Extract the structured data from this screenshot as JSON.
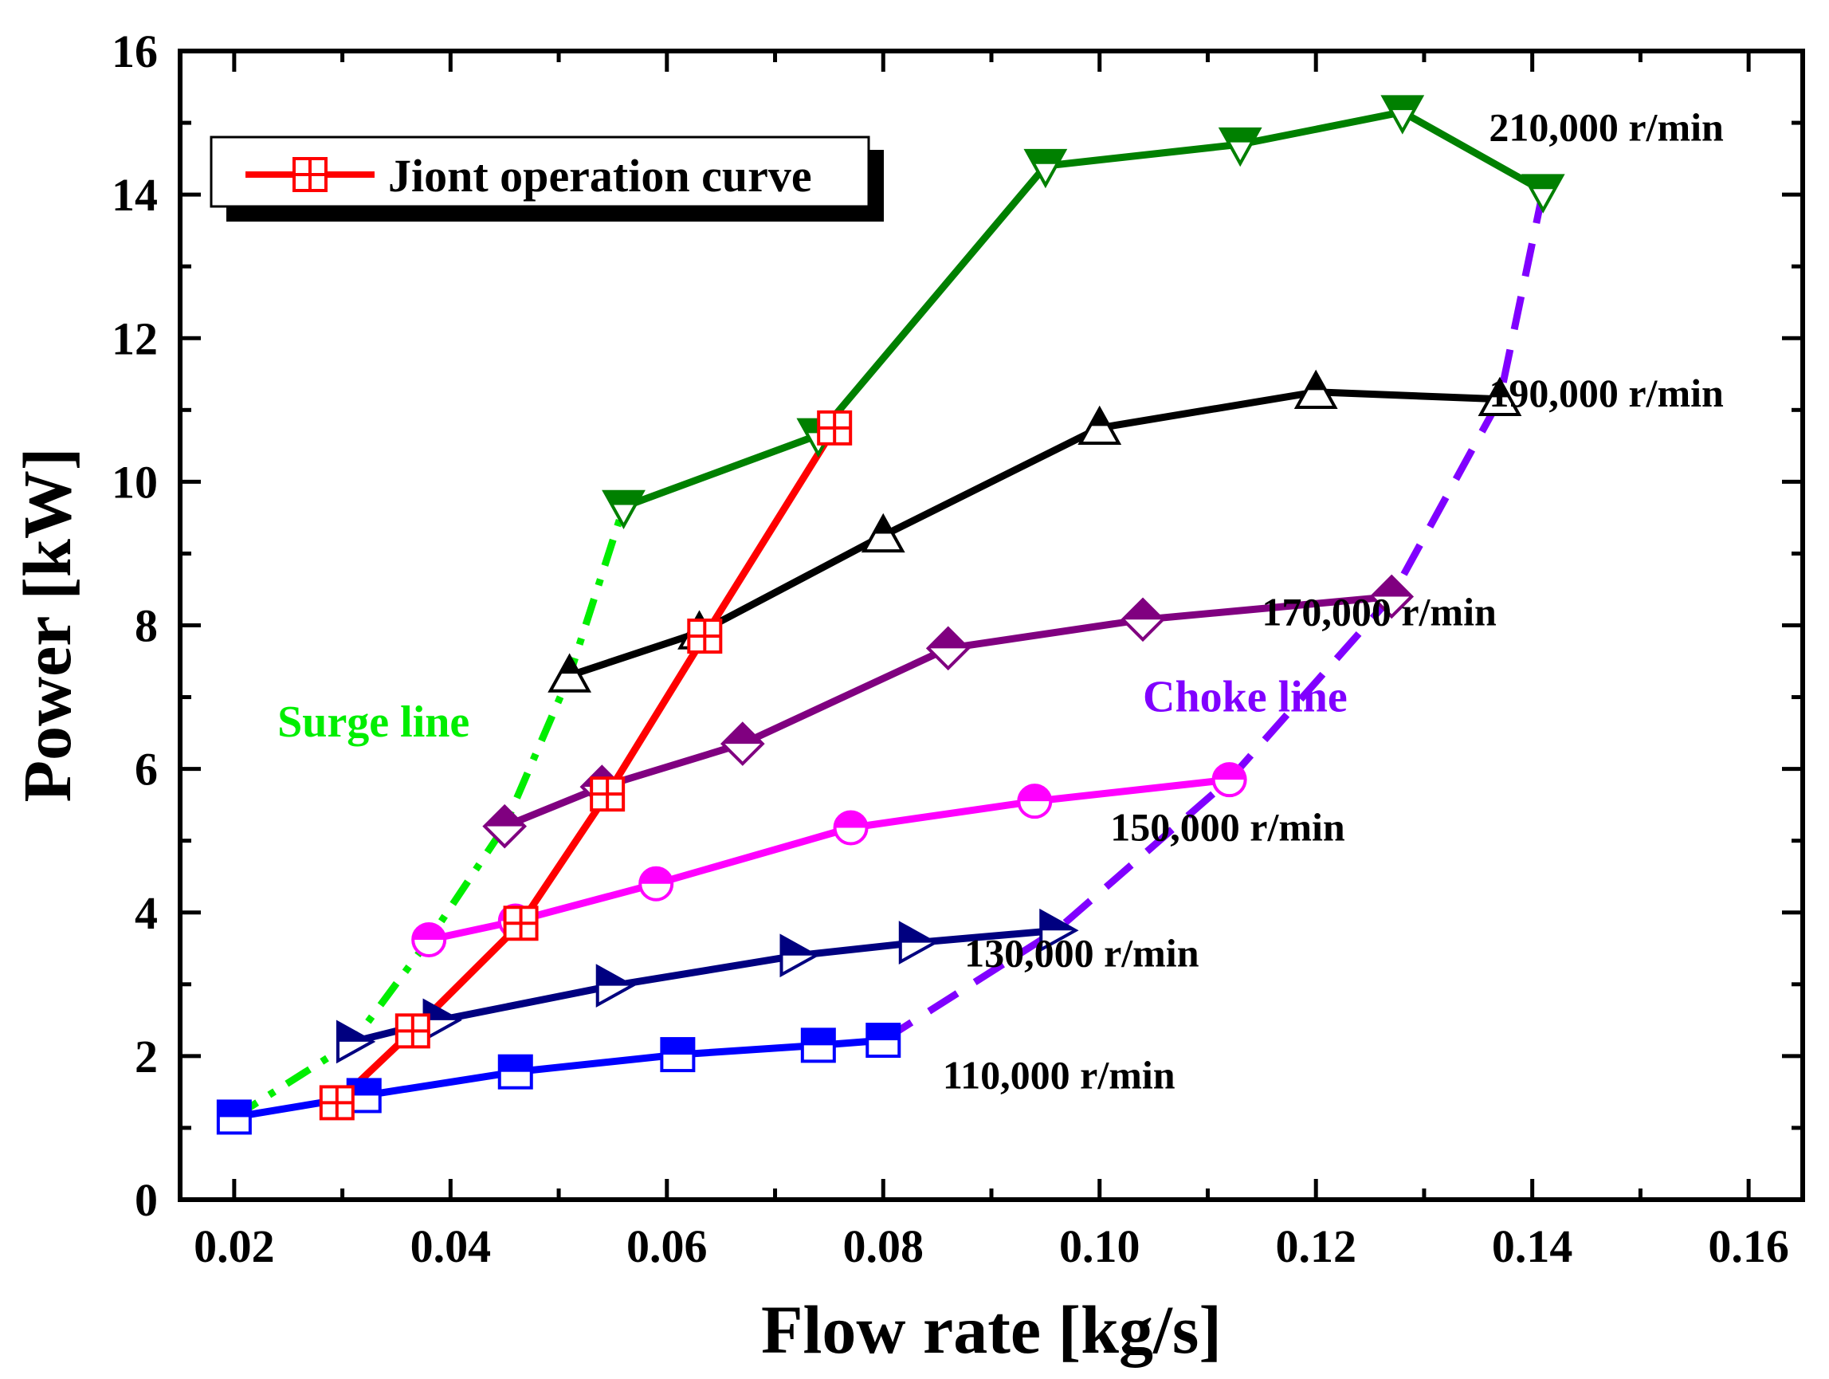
{
  "chart_data": {
    "type": "line",
    "title": "",
    "xlabel": "Flow rate [kg/s]",
    "ylabel": "Power [kW]",
    "xlim": [
      0.015,
      0.165
    ],
    "ylim": [
      0,
      16
    ],
    "xticks": [
      0.02,
      0.04,
      0.06,
      0.08,
      0.1,
      0.12,
      0.14,
      0.16
    ],
    "xtick_labels": [
      "0.02",
      "0.04",
      "0.06",
      "0.08",
      "0.10",
      "0.12",
      "0.14",
      "0.16"
    ],
    "yticks": [
      0,
      2,
      4,
      6,
      8,
      10,
      12,
      14,
      16
    ],
    "ytick_labels": [
      "0",
      "2",
      "4",
      "6",
      "8",
      "10",
      "12",
      "14",
      "16"
    ],
    "legend_position": "top-left",
    "series": [
      {
        "name": "110,000 r/min",
        "color": "#0000ff",
        "marker": "square",
        "dash": "solid",
        "x": [
          0.02,
          0.032,
          0.046,
          0.061,
          0.074,
          0.08
        ],
        "y": [
          1.15,
          1.45,
          1.78,
          2.02,
          2.15,
          2.22
        ]
      },
      {
        "name": "130,000 r/min",
        "color": "#000080",
        "marker": "triangle-right",
        "dash": "solid",
        "x": [
          0.031,
          0.039,
          0.055,
          0.072,
          0.083,
          0.096
        ],
        "y": [
          2.2,
          2.5,
          2.98,
          3.4,
          3.58,
          3.75
        ]
      },
      {
        "name": "150,000 r/min",
        "color": "#ff00ff",
        "marker": "circle",
        "dash": "solid",
        "x": [
          0.038,
          0.046,
          0.059,
          0.077,
          0.094,
          0.112
        ],
        "y": [
          3.62,
          3.88,
          4.4,
          5.18,
          5.55,
          5.85
        ]
      },
      {
        "name": "170,000 r/min",
        "color": "#800080",
        "marker": "diamond",
        "dash": "solid",
        "x": [
          0.045,
          0.054,
          0.067,
          0.086,
          0.104,
          0.127
        ],
        "y": [
          5.2,
          5.75,
          6.35,
          7.68,
          8.08,
          8.4
        ]
      },
      {
        "name": "190,000 r/min",
        "color": "#000000",
        "marker": "triangle-up",
        "dash": "solid",
        "x": [
          0.051,
          0.063,
          0.08,
          0.1,
          0.12,
          0.137
        ],
        "y": [
          7.3,
          7.9,
          9.25,
          10.75,
          11.25,
          11.15
        ]
      },
      {
        "name": "210,000 r/min",
        "color": "#008000",
        "marker": "triangle-down",
        "dash": "solid",
        "x": [
          0.056,
          0.074,
          0.095,
          0.113,
          0.128,
          0.141
        ],
        "y": [
          9.65,
          10.65,
          14.4,
          14.7,
          15.15,
          14.05
        ]
      },
      {
        "name": "Surge line",
        "color": "#00ee00",
        "marker": "none",
        "dash": "dashdot",
        "x": [
          0.02,
          0.031,
          0.038,
          0.045,
          0.051,
          0.056
        ],
        "y": [
          1.15,
          2.2,
          3.62,
          5.2,
          7.3,
          9.65
        ]
      },
      {
        "name": "Choke line",
        "color": "#8000ff",
        "marker": "none",
        "dash": "dashed",
        "x": [
          0.08,
          0.096,
          0.112,
          0.127,
          0.137,
          0.141
        ],
        "y": [
          2.22,
          3.75,
          5.85,
          8.4,
          11.15,
          14.05
        ]
      },
      {
        "name": "Jiont operation curve",
        "color": "#ff0000",
        "marker": "square-plus",
        "dash": "solid",
        "x": [
          0.0295,
          0.0365,
          0.0465,
          0.0545,
          0.0635,
          0.0755
        ],
        "y": [
          1.35,
          2.35,
          3.85,
          5.65,
          7.85,
          10.75
        ]
      }
    ],
    "annotations": [
      {
        "text": "110,000 r/min",
        "x": 0.0855,
        "y": 1.55
      },
      {
        "text": "130,000 r/min",
        "x": 0.0875,
        "y": 3.25
      },
      {
        "text": "150,000 r/min",
        "x": 0.101,
        "y": 5.0
      },
      {
        "text": "170,000 r/min",
        "x": 0.115,
        "y": 8.0
      },
      {
        "text": "190,000 r/min",
        "x": 0.136,
        "y": 11.05
      },
      {
        "text": "210,000 r/min",
        "x": 0.136,
        "y": 14.75
      },
      {
        "text": "Surge line",
        "x": 0.024,
        "y": 6.45,
        "color": "#00ee00"
      },
      {
        "text": "Choke line",
        "x": 0.104,
        "y": 6.8,
        "color": "#8000ff"
      }
    ],
    "legend": {
      "label": "Jiont operation curve"
    }
  }
}
